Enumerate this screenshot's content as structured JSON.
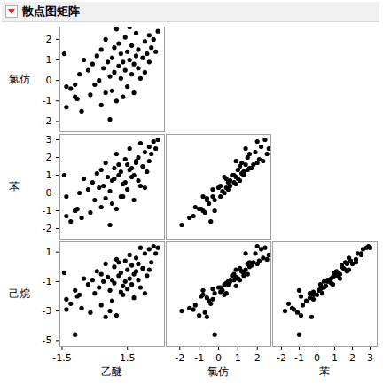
{
  "chart_data": {
    "type": "scatter_matrix",
    "title": "散点图矩阵",
    "rows": [
      "氯仿",
      "苯",
      "己烷"
    ],
    "columns": [
      "乙醚",
      "氯仿",
      "苯"
    ],
    "color": "#000000",
    "marker": "circle",
    "data": {
      "乙醚": [
        -1.4,
        -1.3,
        -1.3,
        -1.1,
        -0.9,
        -0.8,
        -0.7,
        -0.6,
        -0.5,
        -0.9,
        -0.3,
        -0.2,
        -0.1,
        0.0,
        0.1,
        0.2,
        0.3,
        0.3,
        0.4,
        0.5,
        0.5,
        0.6,
        0.7,
        0.7,
        0.8,
        0.8,
        0.9,
        0.9,
        1.0,
        1.0,
        1.1,
        1.1,
        1.2,
        1.2,
        1.3,
        1.3,
        1.4,
        1.4,
        1.5,
        1.5,
        1.6,
        1.6,
        1.7,
        1.7,
        1.8,
        1.8,
        1.9,
        1.9,
        2.0,
        2.0,
        2.1,
        2.1,
        2.2,
        2.3,
        2.3,
        2.4,
        2.5,
        2.5,
        2.6,
        2.7,
        2.8,
        2.9
      ],
      "氯仿": [
        1.3,
        -0.3,
        -1.3,
        -0.4,
        -0.8,
        -0.9,
        0.3,
        -1.5,
        1.0,
        -0.2,
        0.5,
        -0.7,
        0.8,
        -0.2,
        1.2,
        0.0,
        -1.2,
        1.5,
        0.6,
        -0.6,
        2.0,
        0.9,
        -1.9,
        0.2,
        1.1,
        -0.5,
        1.6,
        0.4,
        -1.0,
        2.5,
        0.7,
        1.8,
        0.1,
        1.3,
        -0.8,
        0.9,
        2.1,
        0.5,
        1.4,
        -0.3,
        1.0,
        2.6,
        0.3,
        1.7,
        0.8,
        -0.6,
        1.2,
        2.3,
        0.6,
        1.5,
        0.1,
        2.8,
        1.1,
        1.9,
        0.4,
        1.3,
        2.2,
        0.9,
        1.6,
        2.0,
        1.4,
        2.4
      ],
      "苯": [
        1.0,
        -0.2,
        -1.3,
        -1.6,
        -1.0,
        -0.9,
        0.0,
        -1.4,
        0.8,
        -1.0,
        0.2,
        -1.1,
        0.6,
        -0.4,
        1.1,
        0.3,
        -0.8,
        1.3,
        0.4,
        -0.3,
        1.7,
        0.9,
        -1.8,
        0.1,
        0.7,
        -0.6,
        1.4,
        0.8,
        -0.9,
        2.2,
        1.0,
        1.6,
        -0.2,
        1.2,
        -0.2,
        0.5,
        1.9,
        0.6,
        1.6,
        0.2,
        1.3,
        2.5,
        0.9,
        1.4,
        1.0,
        -0.4,
        1.7,
        1.8,
        0.7,
        2.0,
        0.4,
        2.8,
        1.5,
        2.3,
        0.3,
        1.2,
        2.6,
        1.8,
        2.2,
        2.9,
        2.5,
        3.0
      ],
      "己烷": [
        -0.4,
        -2.2,
        -2.9,
        -2.5,
        -1.6,
        -2.0,
        -1.9,
        -2.8,
        -0.8,
        -4.6,
        -1.2,
        -3.1,
        -0.9,
        -1.8,
        -0.3,
        -1.4,
        -2.6,
        -0.5,
        -1.0,
        -3.4,
        0.2,
        -0.7,
        -3.0,
        -1.6,
        -0.9,
        -2.3,
        0.0,
        -1.1,
        -3.3,
        0.5,
        -0.6,
        0.3,
        -1.7,
        -0.4,
        -1.9,
        -1.3,
        0.4,
        -1.0,
        -0.2,
        -1.5,
        -0.8,
        0.8,
        -1.2,
        0.1,
        -0.5,
        -2.1,
        -0.3,
        0.6,
        -0.9,
        0.2,
        -1.4,
        1.3,
        -0.1,
        0.9,
        -1.8,
        -0.6,
        1.2,
        -0.2,
        0.3,
        1.4,
        0.9,
        1.3
      ]
    },
    "axes": {
      "乙醚": {
        "xlim": [
          -1.6,
          3.2
        ],
        "xticks": [
          -1.5,
          1.5
        ]
      },
      "氯仿": {
        "xlim": [
          -2.7,
          2.7
        ],
        "xticks": [
          -2,
          -1,
          0,
          1,
          2
        ],
        "ylim": [
          -2.5,
          2.6
        ],
        "yticks": [
          -2,
          -1,
          0,
          1,
          2
        ]
      },
      "苯": {
        "xlim": [
          -2.5,
          3.4
        ],
        "xticks": [
          -2,
          -1,
          0,
          1,
          2,
          3
        ],
        "ylim": [
          -2.6,
          3.3
        ],
        "yticks": [
          -2,
          -1,
          0,
          1,
          2,
          3
        ]
      },
      "己烷": {
        "ylim": [
          -5.4,
          1.7
        ],
        "yticks": [
          -5,
          -3,
          -1,
          1
        ]
      }
    }
  }
}
